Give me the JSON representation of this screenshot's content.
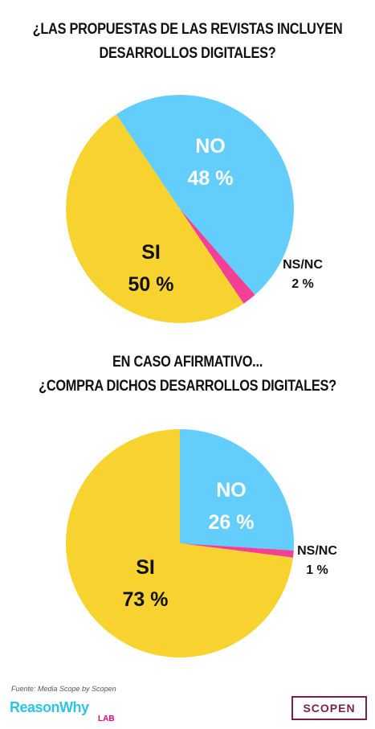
{
  "colors": {
    "si": "#f8d22f",
    "no": "#63cdfb",
    "nsnc": "#f43f97",
    "inside_text": "#ffffff",
    "outside_text": "#111111"
  },
  "chart_data": [
    {
      "type": "pie",
      "title_lines": [
        "¿LAS PROPUESTAS DE LAS REVISTAS INCLUYEN",
        "DESARROLLOS DIGITALES?"
      ],
      "slices": [
        {
          "label": "NO",
          "value": 48,
          "value_text": "48 %",
          "color": "#63cdfb",
          "position": "inside"
        },
        {
          "label": "NS/NC",
          "value": 2,
          "value_text": "2 %",
          "color": "#f43f97",
          "position": "outside"
        },
        {
          "label": "SI",
          "value": 50,
          "value_text": "50 %",
          "color": "#f8d22f",
          "position": "inside"
        }
      ]
    },
    {
      "type": "pie",
      "title_lines": [
        "EN CASO AFIRMATIVO...",
        "¿COMPRA DICHOS DESARROLLOS DIGITALES?"
      ],
      "slices": [
        {
          "label": "NO",
          "value": 26,
          "value_text": "26 %",
          "color": "#63cdfb",
          "position": "inside"
        },
        {
          "label": "NS/NC",
          "value": 1,
          "value_text": "1 %",
          "color": "#f43f97",
          "position": "outside"
        },
        {
          "label": "SI",
          "value": 73,
          "value_text": "73 %",
          "color": "#f8d22f",
          "position": "inside"
        }
      ]
    }
  ],
  "footer": {
    "source": "Fuente: Media Scope by Scopen",
    "logo_reasonwhy": "ReasonWhy",
    "logo_lab": "LAB",
    "logo_scopen": "SCOPEN"
  }
}
